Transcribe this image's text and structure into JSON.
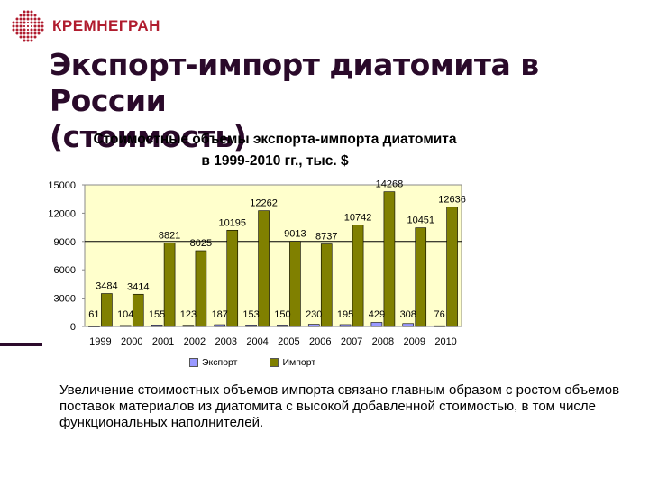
{
  "logo": {
    "text": "КРЕМНЕГРАН",
    "color": "#b01c2e"
  },
  "slide": {
    "title_line1": "Экспорт-импорт диатомита в России",
    "title_line2": "(стоимость)",
    "caption": "Увеличение стоимостных объемов импорта связано главным образом с ростом объемов поставок материалов из диатомита с высокой добавленной стоимостью, в том числе функциональных наполнителей."
  },
  "chart_data": {
    "type": "bar",
    "title": "Стоимостные объемы экспорта-импорта диатомита",
    "subtitle": "в 1999-2010 гг., тыс. $",
    "categories": [
      "1999",
      "2000",
      "2001",
      "2002",
      "2003",
      "2004",
      "2005",
      "2006",
      "2007",
      "2008",
      "2009",
      "2010"
    ],
    "series": [
      {
        "name": "Экспорт",
        "color": "#9999ff",
        "values": [
          61,
          104,
          155,
          123,
          187,
          153,
          150,
          230,
          195,
          429,
          308,
          76
        ]
      },
      {
        "name": "Импорт",
        "color": "#808000",
        "values": [
          3484,
          3414,
          8821,
          8025,
          10195,
          12262,
          9013,
          8737,
          10742,
          14268,
          10451,
          12636
        ]
      }
    ],
    "xlabel": "",
    "ylabel": "",
    "ylim": [
      0,
      15000
    ],
    "yticks": [
      "0",
      "3000",
      "6000",
      "9000",
      "12000",
      "15000"
    ],
    "grid": "single line at 9000",
    "plot_background": "#ffffcc",
    "legend_position": "bottom"
  }
}
